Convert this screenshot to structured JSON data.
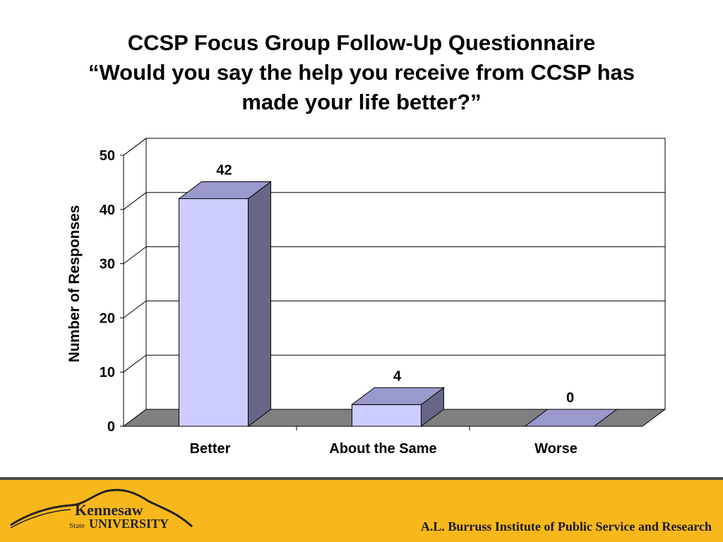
{
  "title": {
    "line1": "CCSP Focus Group Follow-Up Questionnaire",
    "line2": "“Would you say the help you receive from CCSP has",
    "line3": "made your life better?”"
  },
  "chart_data": {
    "type": "bar",
    "categories": [
      "Better",
      "About the Same",
      "Worse"
    ],
    "values": [
      42,
      4,
      0
    ],
    "data_labels": [
      "42",
      "4",
      "0"
    ],
    "ylabel": "Number of Responses",
    "xlabel": "",
    "ylim": [
      0,
      50
    ],
    "yticks": [
      0,
      10,
      20,
      30,
      40,
      50
    ],
    "grid": true,
    "legend": "none",
    "three_d": true,
    "colors": {
      "bar_front": "#ccccff",
      "bar_top": "#9999cc",
      "bar_side": "#666688",
      "floor": "#808080",
      "grid": "#000000"
    }
  },
  "footer": {
    "logo_word1": "Kennesaw",
    "logo_word2": "State",
    "logo_word3": "UNIVERSITY",
    "institute": "A.L. Burruss Institute of Public Service and Research",
    "background": "#f8b81c"
  }
}
